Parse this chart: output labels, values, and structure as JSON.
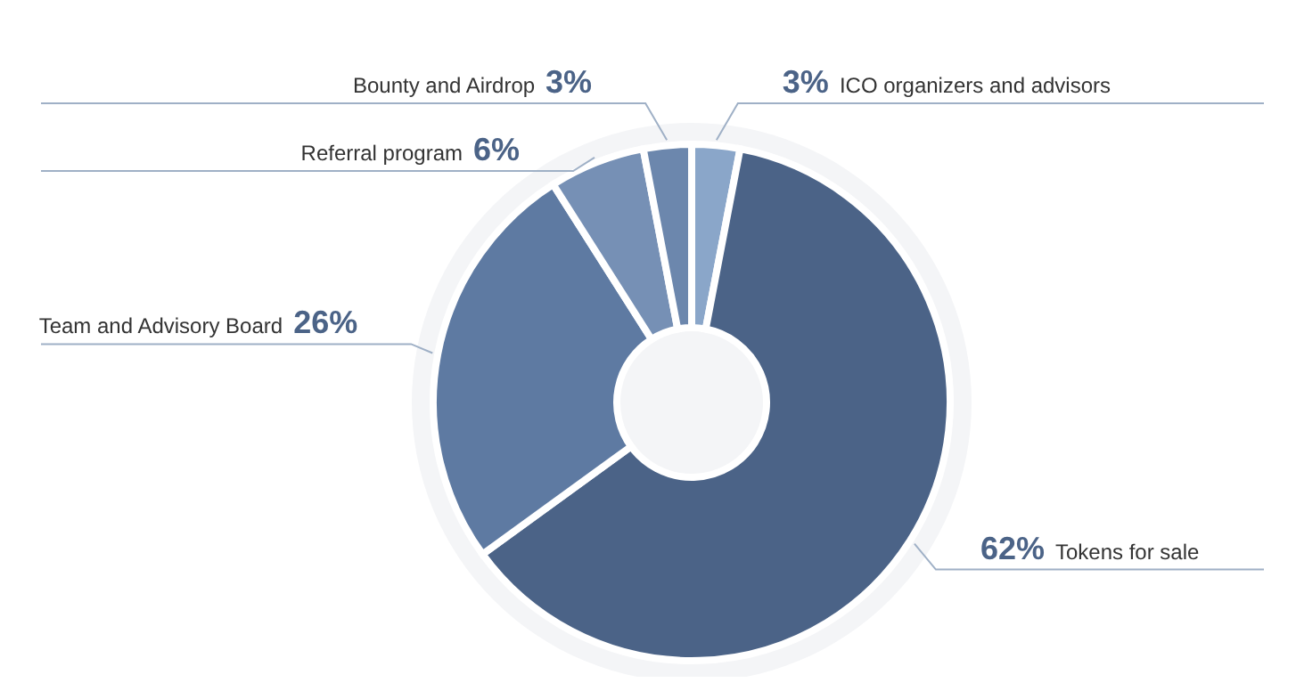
{
  "chart_data": {
    "type": "donut",
    "categories": [
      "ICO organizers and advisors",
      "Tokens for sale",
      "Team and Advisory Board",
      "Referral program",
      "Bounty and Airdrop"
    ],
    "values": [
      3,
      62,
      26,
      6,
      3
    ],
    "colors": [
      "#8aa6c9",
      "#4b6387",
      "#5e7aa2",
      "#7690b5",
      "#6c87ad"
    ],
    "value_labels": [
      "3%",
      "62%",
      "26%",
      "6%",
      "3%"
    ]
  }
}
